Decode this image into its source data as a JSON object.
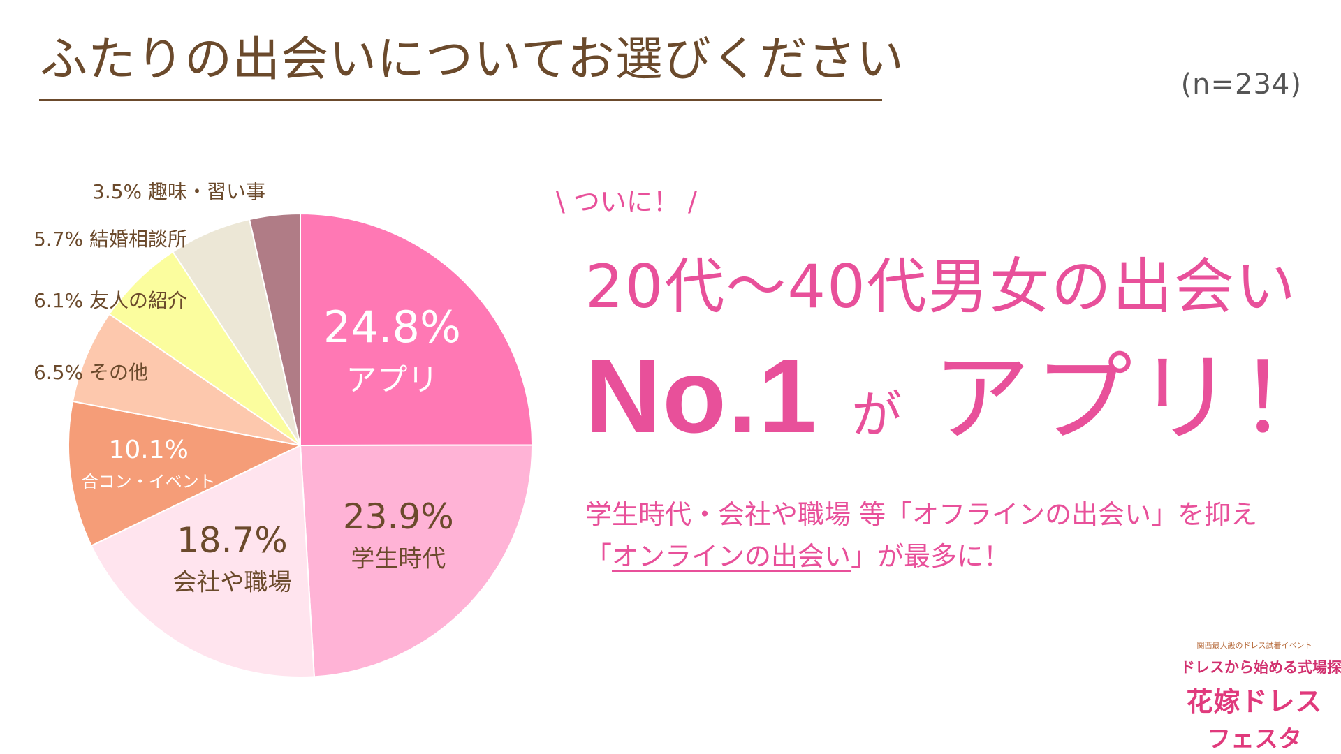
{
  "header": {
    "title": "ふたりの出会いについてお選びください",
    "n": "(n=234)"
  },
  "chart_data": {
    "type": "pie",
    "start_angle_deg": 0,
    "direction": "clockwise",
    "slices": [
      {
        "label": "アプリ",
        "value": 24.8,
        "value_text": "24.8%",
        "color": "#ff78b4",
        "text_color": "#ffffff",
        "label_style": "inside-large"
      },
      {
        "label": "学生時代",
        "value": 23.9,
        "value_text": "23.9%",
        "color": "#ffb3d6",
        "text_color": "#6b4a2c",
        "label_style": "inside"
      },
      {
        "label": "会社や職場",
        "value": 18.7,
        "value_text": "18.7%",
        "color": "#ffe4ee",
        "text_color": "#6b4a2c",
        "label_style": "inside"
      },
      {
        "label": "合コン・イベント",
        "value": 10.1,
        "value_text": "10.1%",
        "color": "#f59d78",
        "text_color": "#ffffff",
        "label_style": "inside-small"
      },
      {
        "label": "その他",
        "value": 6.5,
        "value_text": "6.5%",
        "color": "#fdc8ad",
        "text_color": "#6b4a2c",
        "label_style": "outside"
      },
      {
        "label": "友人の紹介",
        "value": 6.1,
        "value_text": "6.1%",
        "color": "#fbfd9e",
        "text_color": "#6b4a2c",
        "label_style": "outside"
      },
      {
        "label": "結婚相談所",
        "value": 5.7,
        "value_text": "5.7%",
        "color": "#ece7d6",
        "text_color": "#6b4a2c",
        "label_style": "outside"
      },
      {
        "label": "趣味・習い事",
        "value": 3.5,
        "value_text": "3.5%",
        "color": "#b07c86",
        "text_color": "#6b4a2c",
        "label_style": "outside"
      }
    ]
  },
  "message": {
    "catch": "\\ ついに！ /",
    "headline1": "20代〜40代男女の出会い",
    "no1": "No.1",
    "ga": "が",
    "app": "アプリ！",
    "body1": "学生時代・会社や職場 等「オフラインの出会い」を抑え",
    "body2_open": "「",
    "body2_underlined": "オンラインの出会い",
    "body2_close": "」が最多に！"
  },
  "logo": {
    "tagline": "関西最大級のドレス試着イベント",
    "subtitle": "ドレスから始める式場探し",
    "name_line1": "花嫁ドレス",
    "name_line2": "フェスタ"
  }
}
